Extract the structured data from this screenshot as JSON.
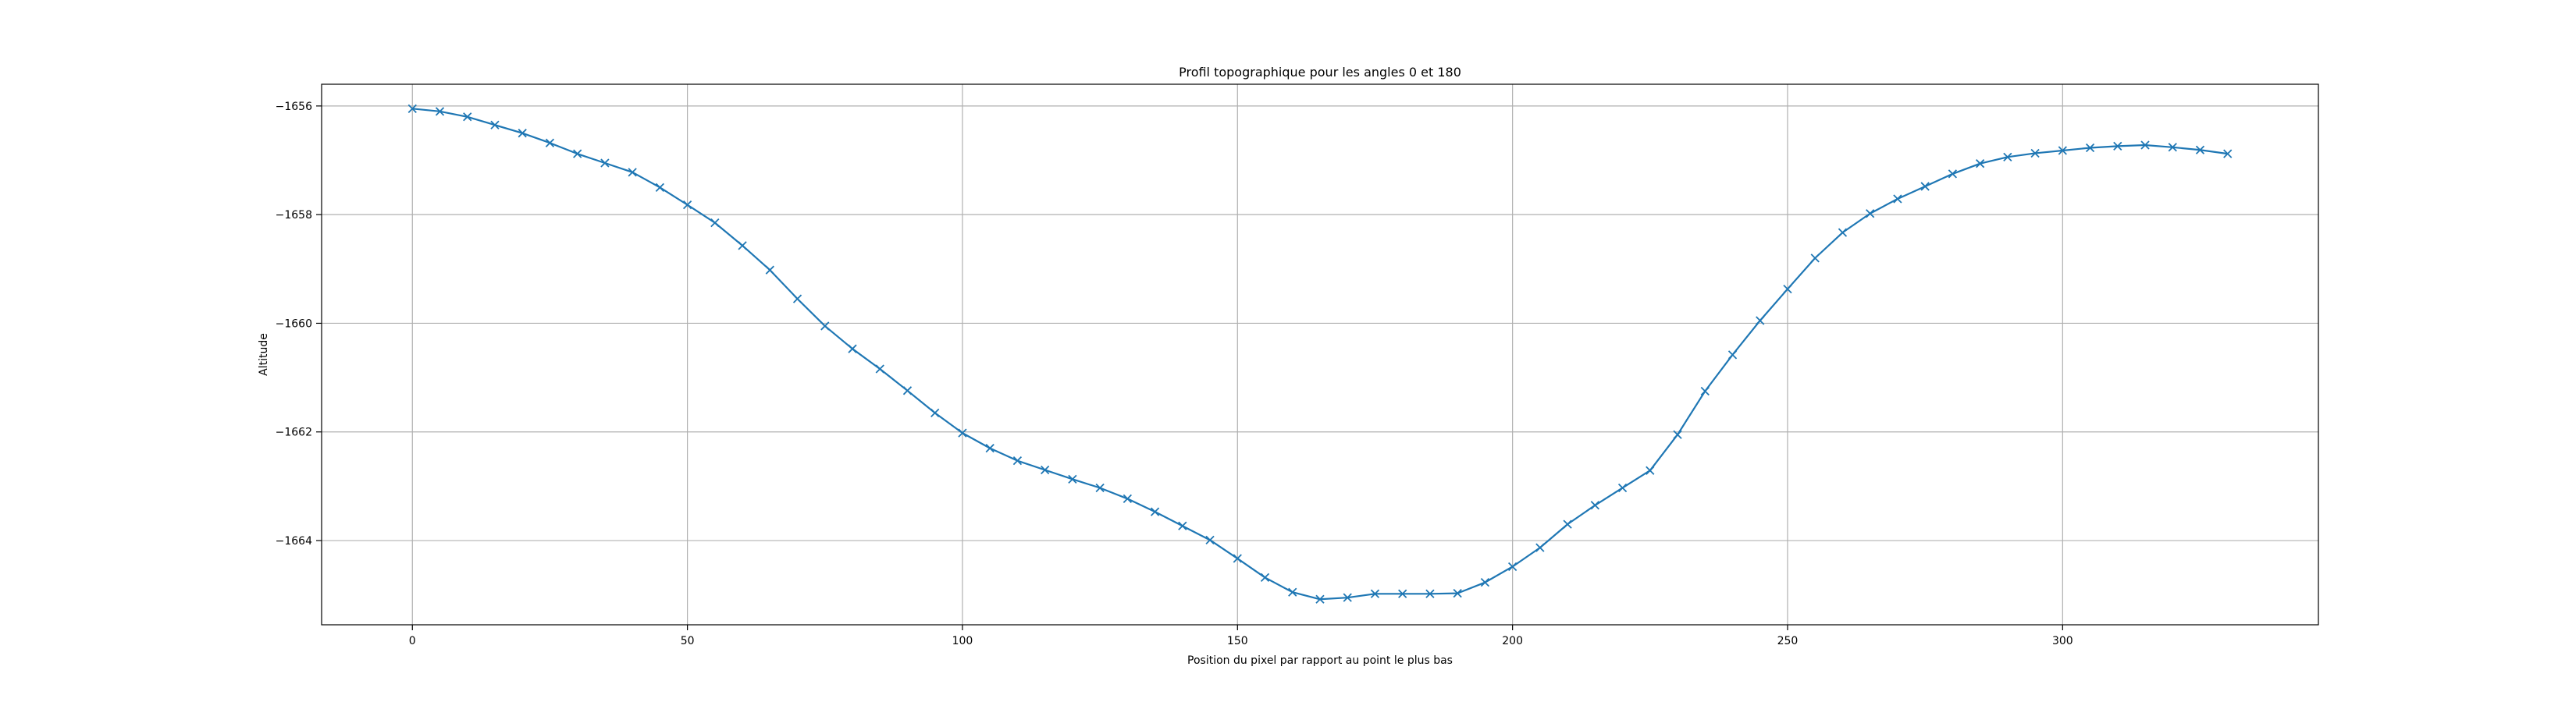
{
  "chart_data": {
    "type": "line",
    "title": "Profil topographique pour les angles 0 et 180",
    "xlabel": "Position du pixel par rapport au point le plus bas",
    "ylabel": "Altitude",
    "xlim": [
      -16.5,
      346.5
    ],
    "ylim": [
      -1665.55,
      -1655.6
    ],
    "xticks": [
      0,
      50,
      100,
      150,
      200,
      250,
      300
    ],
    "yticks": [
      -1656,
      -1658,
      -1660,
      -1662,
      -1664
    ],
    "xtick_labels": [
      "0",
      "50",
      "100",
      "150",
      "200",
      "250",
      "300"
    ],
    "ytick_labels": [
      "−1656",
      "−1658",
      "−1660",
      "−1662",
      "−1664"
    ],
    "grid": true,
    "marker": "x",
    "line_color": "#1f77b4",
    "series": [
      {
        "x": [
          0,
          5,
          10,
          15,
          20,
          25,
          30,
          35,
          40,
          45,
          50,
          55,
          60,
          65,
          70,
          75,
          80,
          85,
          90,
          95,
          100,
          105,
          110,
          115,
          120,
          125,
          130,
          135,
          140,
          145,
          150,
          155,
          160,
          165,
          170,
          175,
          180,
          185,
          190,
          195,
          200,
          205,
          210,
          215,
          220,
          225,
          230,
          235,
          240,
          245,
          250,
          255,
          260,
          265,
          270,
          275,
          280,
          285,
          290,
          295,
          300,
          305,
          310,
          315,
          320,
          325,
          330
        ],
        "y": [
          -1656.05,
          -1656.1,
          -1656.2,
          -1656.35,
          -1656.5,
          -1656.68,
          -1656.88,
          -1657.05,
          -1657.22,
          -1657.5,
          -1657.82,
          -1658.15,
          -1658.57,
          -1659.02,
          -1659.55,
          -1660.05,
          -1660.47,
          -1660.84,
          -1661.24,
          -1661.65,
          -1662.02,
          -1662.3,
          -1662.53,
          -1662.7,
          -1662.87,
          -1663.03,
          -1663.23,
          -1663.47,
          -1663.73,
          -1663.99,
          -1664.33,
          -1664.68,
          -1664.95,
          -1665.08,
          -1665.05,
          -1664.98,
          -1664.98,
          -1664.98,
          -1664.97,
          -1664.77,
          -1664.48,
          -1664.13,
          -1663.7,
          -1663.35,
          -1663.03,
          -1662.71,
          -1662.05,
          -1661.25,
          -1660.58,
          -1659.95,
          -1659.37,
          -1658.8,
          -1658.33,
          -1657.98,
          -1657.71,
          -1657.48,
          -1657.25,
          -1657.06,
          -1656.94,
          -1656.87,
          -1656.82,
          -1656.77,
          -1656.74,
          -1656.72,
          -1656.76,
          -1656.81,
          -1656.88
        ]
      }
    ]
  }
}
